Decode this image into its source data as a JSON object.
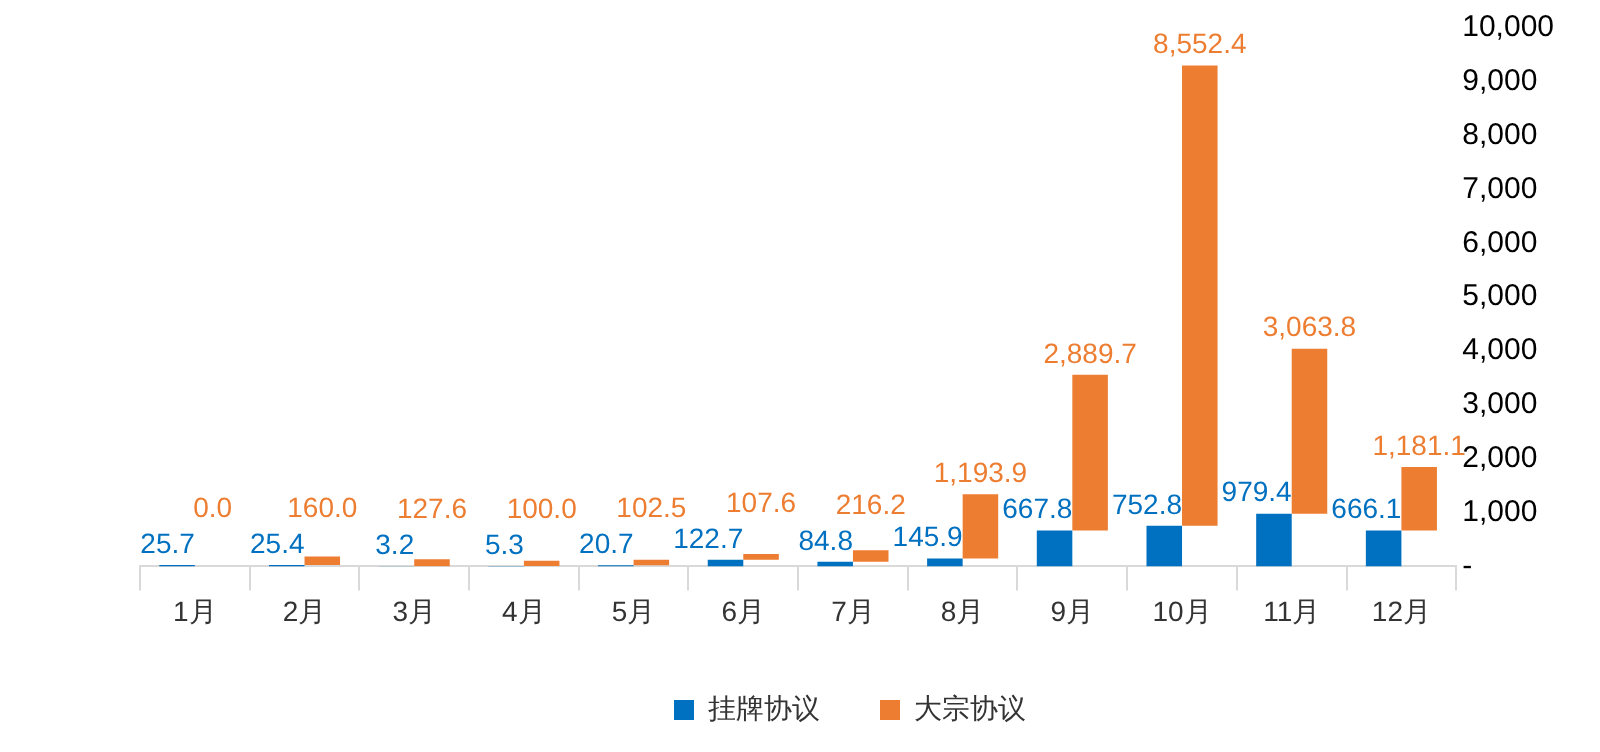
{
  "chart_data": {
    "type": "bar",
    "stacked": true,
    "categories": [
      "1月",
      "2月",
      "3月",
      "4月",
      "5月",
      "6月",
      "7月",
      "8月",
      "9月",
      "10月",
      "11月",
      "12月"
    ],
    "series": [
      {
        "name": "挂牌协议",
        "color": "#0070c0",
        "values": [
          25.7,
          25.4,
          3.2,
          5.3,
          20.7,
          122.7,
          84.8,
          145.9,
          667.8,
          752.8,
          979.4,
          666.1
        ],
        "value_labels": [
          "25.7",
          "25.4",
          "3.2",
          "5.3",
          "20.7",
          "122.7",
          "84.8",
          "145.9",
          "667.8",
          "752.8",
          "979.4",
          "666.1"
        ]
      },
      {
        "name": "大宗协议",
        "color": "#ed7d31",
        "values": [
          0.0,
          160.0,
          127.6,
          100.0,
          102.5,
          107.6,
          216.2,
          1193.9,
          2889.7,
          8552.4,
          3063.8,
          1181.1
        ],
        "value_labels": [
          "0.0",
          "160.0",
          "127.6",
          "100.0",
          "102.5",
          "107.6",
          "216.2",
          "1,193.9",
          "2,889.7",
          "8,552.4",
          "3,063.8",
          "1,181.1"
        ]
      }
    ],
    "ylim": [
      0,
      10000
    ],
    "yticks": [
      {
        "value": 0,
        "label": "-"
      },
      {
        "value": 1000,
        "label": "1,000"
      },
      {
        "value": 2000,
        "label": "2,000"
      },
      {
        "value": 3000,
        "label": "3,000"
      },
      {
        "value": 4000,
        "label": "4,000"
      },
      {
        "value": 5000,
        "label": "5,000"
      },
      {
        "value": 6000,
        "label": "6,000"
      },
      {
        "value": 7000,
        "label": "7,000"
      },
      {
        "value": 8000,
        "label": "8,000"
      },
      {
        "value": 9000,
        "label": "9,000"
      },
      {
        "value": 10000,
        "label": "10,000"
      }
    ],
    "grid": false,
    "legend": "bottom"
  }
}
